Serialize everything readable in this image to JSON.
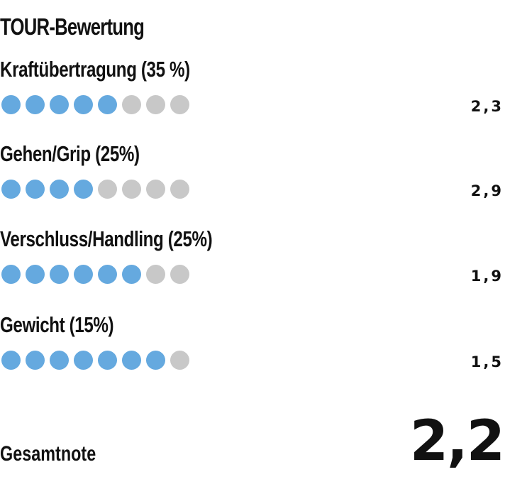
{
  "title": "TOUR-Bewertung",
  "colors": {
    "filled_dot": "#65a9df",
    "empty_dot": "#c8c8c8",
    "text": "#111111"
  },
  "max_dots": 8,
  "categories": [
    {
      "label": "Kraftübertragung (35 %)",
      "filled": 5,
      "score": "2,3"
    },
    {
      "label": "Gehen/Grip (25%)",
      "filled": 4,
      "score": "2,9"
    },
    {
      "label": "Verschluss/Handling (25%)",
      "filled": 6,
      "score": "1,9"
    },
    {
      "label": "Gewicht (15%)",
      "filled": 7,
      "score": "1,5"
    }
  ],
  "total": {
    "label": "Gesamtnote",
    "score": "2,2"
  }
}
